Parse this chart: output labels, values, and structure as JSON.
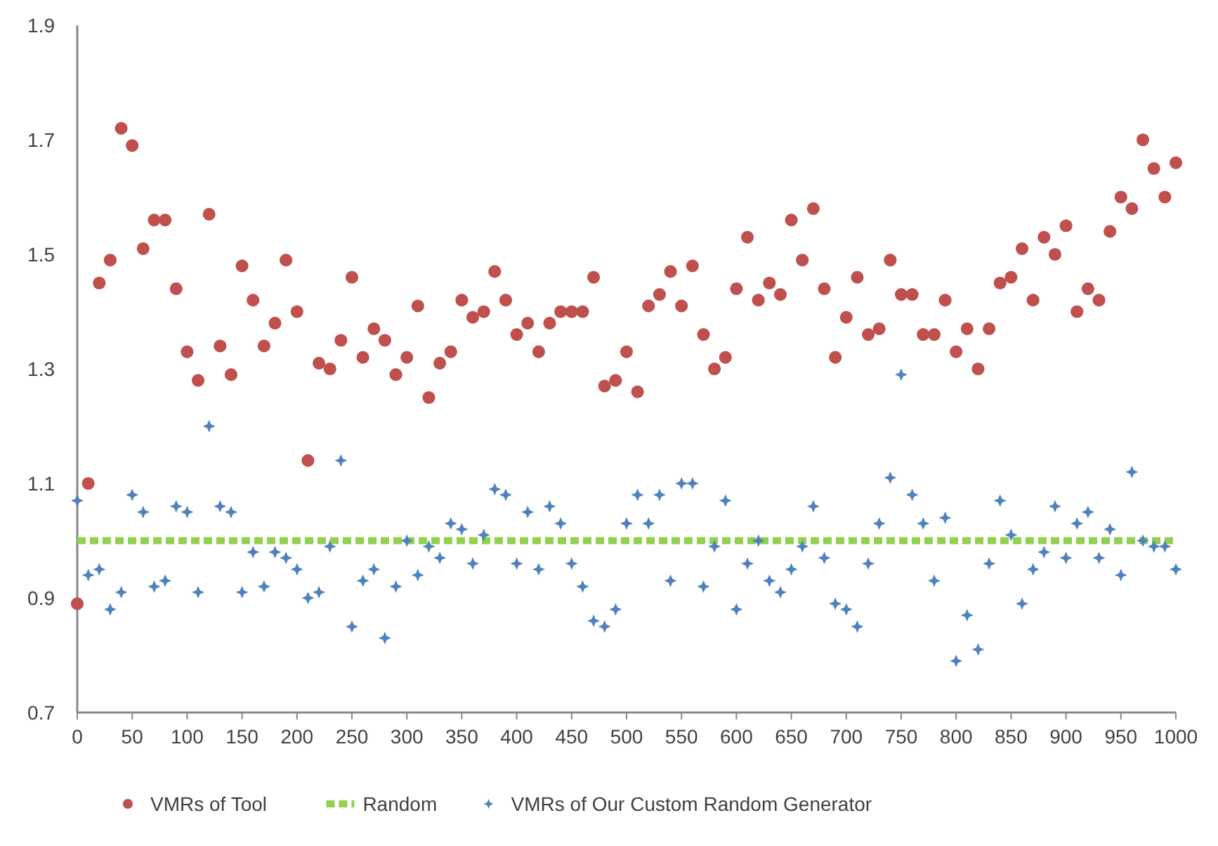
{
  "chart_data": {
    "type": "scatter",
    "x": [
      0,
      10,
      20,
      30,
      40,
      50,
      60,
      70,
      80,
      90,
      100,
      110,
      120,
      130,
      140,
      150,
      160,
      170,
      180,
      190,
      200,
      210,
      220,
      230,
      240,
      250,
      260,
      270,
      280,
      290,
      300,
      310,
      320,
      330,
      340,
      350,
      360,
      370,
      380,
      390,
      400,
      410,
      420,
      430,
      440,
      450,
      460,
      470,
      480,
      490,
      500,
      510,
      520,
      530,
      540,
      550,
      560,
      570,
      580,
      590,
      600,
      610,
      620,
      630,
      640,
      650,
      660,
      670,
      680,
      690,
      700,
      710,
      720,
      730,
      740,
      750,
      760,
      770,
      780,
      790,
      800,
      810,
      820,
      830,
      840,
      850,
      860,
      870,
      880,
      890,
      900,
      910,
      920,
      930,
      940,
      950,
      960,
      970,
      980,
      990,
      1000
    ],
    "xlim": [
      0,
      1000
    ],
    "xticks": [
      0,
      50,
      100,
      150,
      200,
      250,
      300,
      350,
      400,
      450,
      500,
      550,
      600,
      650,
      700,
      750,
      800,
      850,
      900,
      950,
      1000
    ],
    "ylim": [
      0.7,
      1.9
    ],
    "yticks": [
      0.7,
      0.9,
      1.1,
      1.3,
      1.5,
      1.7,
      1.9
    ],
    "grid": false,
    "legend": "bottom",
    "series": [
      {
        "name": "VMRs of Tool",
        "marker": "circle",
        "color": "#c0504d",
        "values": [
          0.89,
          1.1,
          1.45,
          1.49,
          1.72,
          1.69,
          1.51,
          1.56,
          1.56,
          1.44,
          1.33,
          1.28,
          1.57,
          1.34,
          1.29,
          1.48,
          1.42,
          1.34,
          1.38,
          1.49,
          1.4,
          1.14,
          1.31,
          1.3,
          1.35,
          1.46,
          1.32,
          1.37,
          1.35,
          1.29,
          1.32,
          1.41,
          1.25,
          1.31,
          1.33,
          1.42,
          1.39,
          1.4,
          1.47,
          1.42,
          1.36,
          1.38,
          1.33,
          1.38,
          1.4,
          1.4,
          1.4,
          1.46,
          1.27,
          1.28,
          1.33,
          1.26,
          1.41,
          1.43,
          1.47,
          1.41,
          1.48,
          1.36,
          1.3,
          1.32,
          1.44,
          1.53,
          1.42,
          1.45,
          1.43,
          1.56,
          1.49,
          1.58,
          1.44,
          1.32,
          1.39,
          1.46,
          1.36,
          1.37,
          1.49,
          1.43,
          1.43,
          1.36,
          1.36,
          1.42,
          1.33,
          1.37,
          1.3,
          1.37,
          1.45,
          1.46,
          1.51,
          1.42,
          1.53,
          1.5,
          1.55,
          1.4,
          1.44,
          1.42,
          1.54,
          1.6,
          1.58,
          1.7,
          1.65,
          1.6,
          1.66
        ]
      },
      {
        "name": "Random",
        "type": "line",
        "marker": "none",
        "line_style": "dashed",
        "color": "#92d050",
        "x": [
          0,
          1000
        ],
        "values": [
          1.0,
          1.0
        ]
      },
      {
        "name": "VMRs of Our Custom Random Generator",
        "marker": "diamond",
        "color": "#4f81bd",
        "values": [
          1.07,
          0.94,
          0.95,
          0.88,
          0.91,
          1.08,
          1.05,
          0.92,
          0.93,
          1.06,
          1.05,
          0.91,
          1.2,
          1.06,
          1.05,
          0.91,
          0.98,
          0.92,
          0.98,
          0.97,
          0.95,
          0.9,
          0.91,
          0.99,
          1.14,
          0.85,
          0.93,
          0.95,
          0.83,
          0.92,
          1.0,
          0.94,
          0.99,
          0.97,
          1.03,
          1.02,
          0.96,
          1.01,
          1.09,
          1.08,
          0.96,
          1.05,
          0.95,
          1.06,
          1.03,
          0.96,
          0.92,
          0.86,
          0.85,
          0.88,
          1.03,
          1.08,
          1.03,
          1.08,
          0.93,
          1.1,
          1.1,
          0.92,
          0.99,
          1.07,
          0.88,
          0.96,
          1.0,
          0.93,
          0.91,
          0.95,
          0.99,
          1.06,
          0.97,
          0.89,
          0.88,
          0.85,
          0.96,
          1.03,
          1.11,
          1.29,
          1.08,
          1.03,
          0.93,
          1.04,
          0.79,
          0.87,
          0.81,
          0.96,
          1.07,
          1.01,
          0.89,
          0.95,
          0.98,
          1.06,
          0.97,
          1.03,
          1.05,
          0.97,
          1.02,
          0.94,
          1.12,
          1.0,
          0.99,
          0.99,
          0.95
        ]
      }
    ]
  }
}
